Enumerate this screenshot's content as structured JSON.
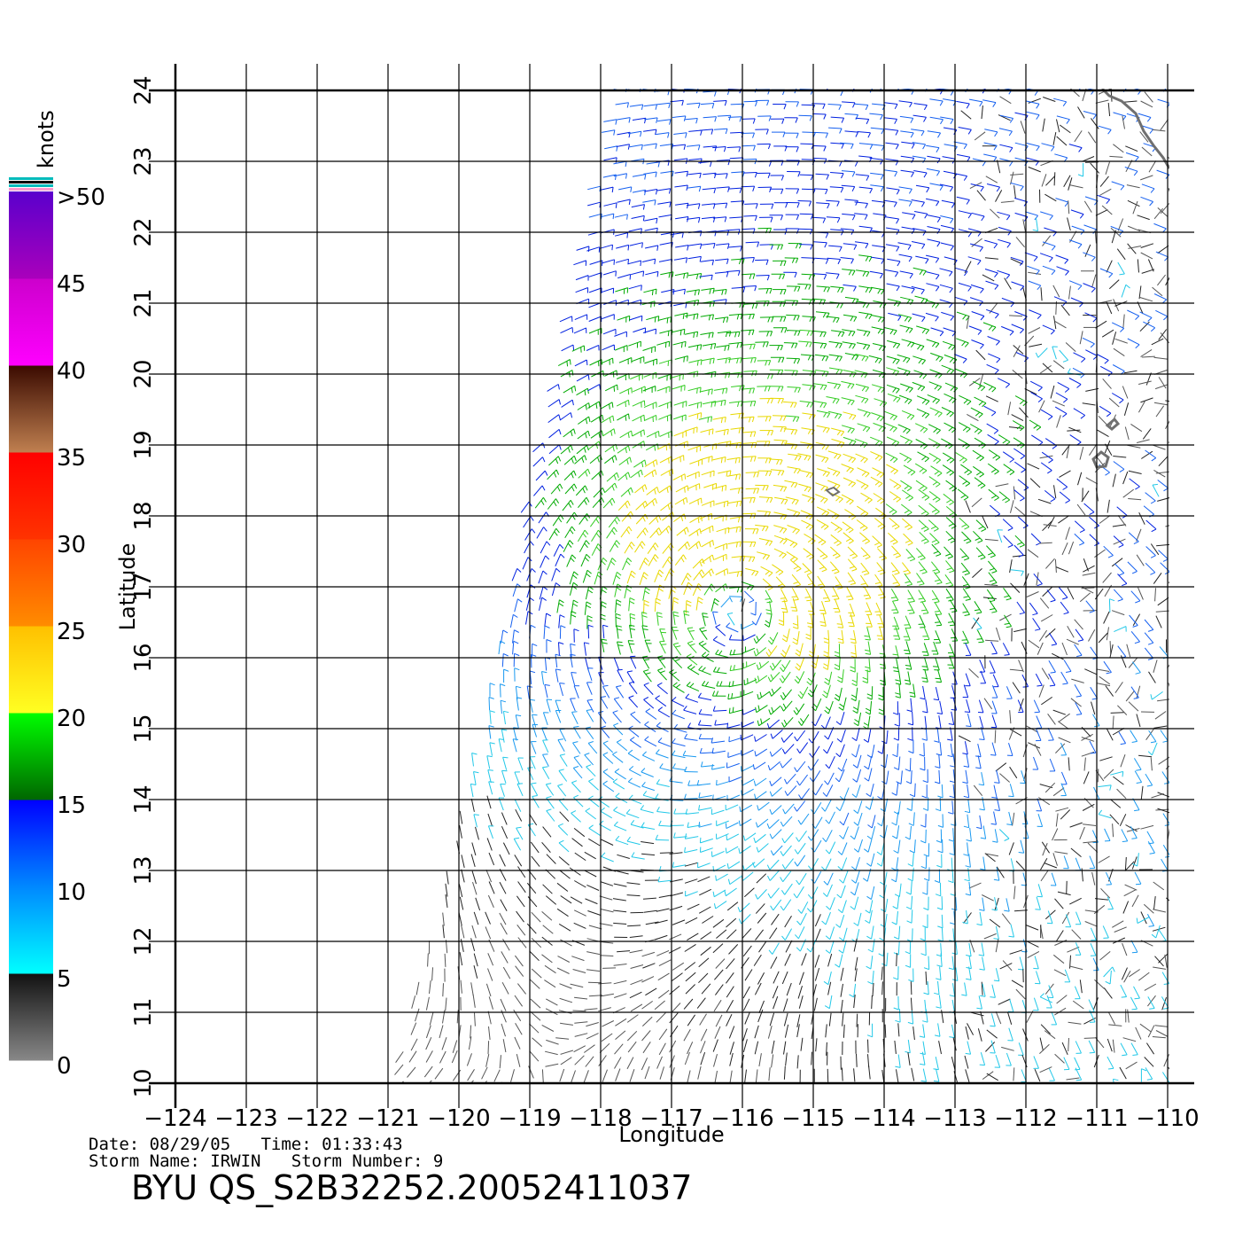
{
  "map": {
    "type": "wind-barb-map",
    "x_axis": {
      "label": "Longitude",
      "range": [
        -124,
        -110
      ],
      "ticks": [
        "-124",
        "-123",
        "-122",
        "-121",
        "-120",
        "-119",
        "-118",
        "-117",
        "-116",
        "-115",
        "-114",
        "-113",
        "-112",
        "-111",
        "-110"
      ]
    },
    "y_axis": {
      "label": "Latitude",
      "range": [
        10,
        24
      ],
      "ticks": [
        "10",
        "11",
        "12",
        "13",
        "14",
        "15",
        "16",
        "17",
        "18",
        "19",
        "20",
        "21",
        "22",
        "23",
        "24"
      ]
    },
    "grid": true,
    "storm_center": {
      "lon": -116.0,
      "lat": 16.8
    },
    "swath_west_edge": {
      "lon_at_lat10": -120.9,
      "lon_at_lat24": -117.7
    }
  },
  "colorbar": {
    "unit": "knots",
    "labels": [
      ">50",
      "45",
      "40",
      "35",
      "30",
      "25",
      "20",
      "15",
      "10",
      "5",
      "0"
    ],
    "bands": [
      {
        "from": 0,
        "to": 5,
        "colors": [
          "#888888",
          "#111111"
        ]
      },
      {
        "from": 5,
        "to": 10,
        "colors": [
          "#00ffff",
          "#0088ff"
        ]
      },
      {
        "from": 10,
        "to": 15,
        "colors": [
          "#0088ff",
          "#0000ff"
        ]
      },
      {
        "from": 15,
        "to": 20,
        "colors": [
          "#006600",
          "#00ff00"
        ]
      },
      {
        "from": 20,
        "to": 25,
        "colors": [
          "#ffff22",
          "#ffc000"
        ]
      },
      {
        "from": 25,
        "to": 30,
        "colors": [
          "#ff8c00",
          "#ff4400"
        ]
      },
      {
        "from": 30,
        "to": 35,
        "colors": [
          "#ff3300",
          "#ff0000"
        ]
      },
      {
        "from": 35,
        "to": 40,
        "colors": [
          "#c08050",
          "#3a0a00"
        ]
      },
      {
        "from": 40,
        "to": 45,
        "colors": [
          "#ff00ff",
          "#cc00cc"
        ]
      },
      {
        "from": 45,
        "to": 50,
        "colors": [
          "#aa00bb",
          "#5a00cc"
        ]
      }
    ],
    "top_stripes": [
      "#00bbbb",
      "#000000",
      "#00bbbb",
      "#ff99cc"
    ]
  },
  "info": {
    "line1": "Date: 08/29/05   Time: 01:33:43",
    "line2": "Storm Name: IRWIN   Storm Number: 9",
    "product_title": "BYU QS_S2B32252.20052411037"
  },
  "colors": {
    "coastline": "#707070",
    "grid": "#000000"
  }
}
